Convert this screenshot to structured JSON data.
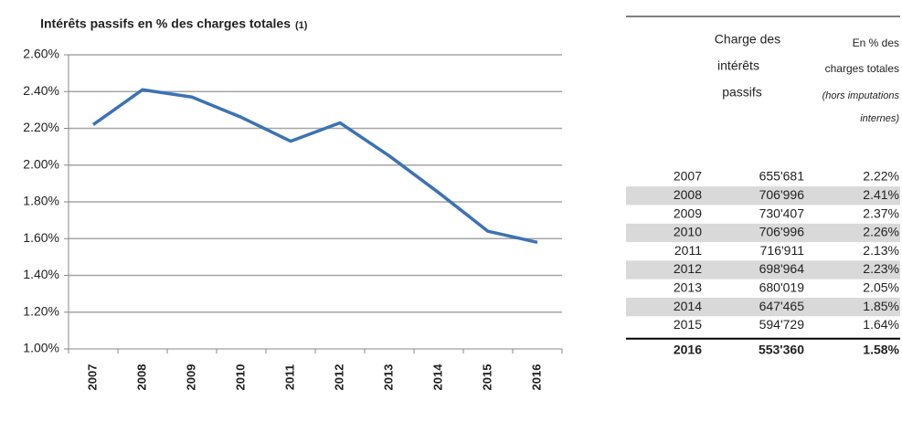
{
  "chart_data": {
    "type": "line",
    "title": "Intérêts passifs en % des charges totales",
    "title_footnote": "(1)",
    "categories": [
      "2007",
      "2008",
      "2009",
      "2010",
      "2011",
      "2012",
      "2013",
      "2014",
      "2015",
      "2016"
    ],
    "values": [
      2.22,
      2.41,
      2.37,
      2.26,
      2.13,
      2.23,
      2.05,
      1.85,
      1.64,
      1.58
    ],
    "color": "#3d72b4",
    "ylim": [
      1.0,
      2.6
    ],
    "yticks": [
      {
        "value": 1.0,
        "label": "1.00%"
      },
      {
        "value": 1.2,
        "label": "1.20%"
      },
      {
        "value": 1.4,
        "label": "1.40%"
      },
      {
        "value": 1.6,
        "label": "1.60%"
      },
      {
        "value": 1.8,
        "label": "1.80%"
      },
      {
        "value": 2.0,
        "label": "2.00%"
      },
      {
        "value": 2.2,
        "label": "2.20%"
      },
      {
        "value": 2.4,
        "label": "2.40%"
      },
      {
        "value": 2.6,
        "label": "2.60%"
      }
    ],
    "grid": true
  },
  "table": {
    "header": {
      "col1": [
        "Charge des",
        "intérêts",
        "passifs"
      ],
      "col2": [
        "En % des",
        "charges totales"
      ],
      "col2_note": [
        "(hors imputations",
        "internes)"
      ]
    },
    "rows": [
      [
        "2007",
        "655'681",
        "2.22%"
      ],
      [
        "2008",
        "706'996",
        "2.41%"
      ],
      [
        "2009",
        "730'407",
        "2.37%"
      ],
      [
        "2010",
        "706'996",
        "2.26%"
      ],
      [
        "2011",
        "716'911",
        "2.13%"
      ],
      [
        "2012",
        "698'964",
        "2.23%"
      ],
      [
        "2013",
        "680'019",
        "2.05%"
      ],
      [
        "2014",
        "647'465",
        "1.85%"
      ],
      [
        "2015",
        "594'729",
        "1.64%"
      ],
      [
        "2016",
        "553'360",
        "1.58%"
      ]
    ]
  }
}
